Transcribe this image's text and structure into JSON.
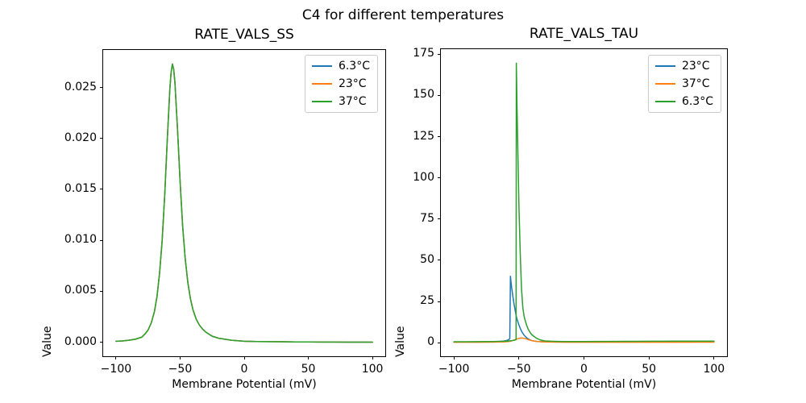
{
  "figure": {
    "suptitle": "C4 for different temperatures"
  },
  "colors": {
    "blue": "#1f77b4",
    "orange": "#ff7f0e",
    "green": "#2ca02c",
    "spine": "#000000",
    "legend_edge": "#cccccc",
    "background": "#ffffff"
  },
  "chart_data": [
    {
      "type": "line",
      "title": "RATE_VALS_SS",
      "xlabel": "Membrane Potential (mV)",
      "ylabel": "Value",
      "xlim": [
        -110,
        110
      ],
      "ylim": [
        -0.00137,
        0.02868
      ],
      "xticks": [
        -100,
        -50,
        0,
        50,
        100
      ],
      "xtick_labels": [
        "−100",
        "−50",
        "0",
        "50",
        "100"
      ],
      "yticks": [
        0.0,
        0.005,
        0.01,
        0.015,
        0.02,
        0.025
      ],
      "ytick_labels": [
        "0.000",
        "0.005",
        "0.010",
        "0.015",
        "0.020",
        "0.025"
      ],
      "grid": false,
      "legend_position": "upper right",
      "legend": [
        {
          "label": "6.3°C",
          "color": "#1f77b4"
        },
        {
          "label": "23°C",
          "color": "#ff7f0e"
        },
        {
          "label": "37°C",
          "color": "#2ca02c"
        }
      ],
      "note": "all three temperature curves overlap exactly; peak 0.0273 at -56 mV",
      "x": [
        -100,
        -95,
        -90,
        -85,
        -80,
        -77.5,
        -75,
        -72.5,
        -70,
        -68,
        -66,
        -64,
        -62,
        -60,
        -58,
        -57,
        -56,
        -55,
        -54,
        -52,
        -50,
        -48,
        -46,
        -44,
        -42,
        -40,
        -37.5,
        -35,
        -32.5,
        -30,
        -25,
        -20,
        -15,
        -10,
        -5,
        0,
        10,
        20,
        30,
        40,
        50,
        60,
        70,
        80,
        90,
        100
      ],
      "y_all": [
        0.0001,
        0.00013,
        0.0002,
        0.0003,
        0.0005,
        0.0008,
        0.0012,
        0.0019,
        0.003,
        0.0045,
        0.0068,
        0.01,
        0.0145,
        0.0198,
        0.0248,
        0.0265,
        0.0273,
        0.0268,
        0.0254,
        0.0208,
        0.0157,
        0.0114,
        0.0082,
        0.0059,
        0.0043,
        0.0032,
        0.0023,
        0.0017,
        0.0013,
        0.001,
        0.0006,
        0.0004,
        0.0003,
        0.0002,
        0.00015,
        0.0001,
        8e-05,
        6e-05,
        5e-05,
        4e-05,
        3e-05,
        2e-05,
        2e-05,
        1e-05,
        1e-05,
        1e-05
      ],
      "series": [
        {
          "name": "6.3°C",
          "color": "#1f77b4"
        },
        {
          "name": "23°C",
          "color": "#ff7f0e"
        },
        {
          "name": "37°C",
          "color": "#2ca02c"
        }
      ]
    },
    {
      "type": "line",
      "title": "RATE_VALS_TAU",
      "xlabel": "Membrane Potential (mV)",
      "ylabel": "Value",
      "xlim": [
        -110,
        110
      ],
      "ylim": [
        -8.2,
        178.1
      ],
      "xticks": [
        -100,
        -50,
        0,
        50,
        100
      ],
      "xtick_labels": [
        "−100",
        "−50",
        "0",
        "50",
        "100"
      ],
      "yticks": [
        0,
        25,
        50,
        75,
        100,
        125,
        150,
        175
      ],
      "ytick_labels": [
        "0",
        "25",
        "50",
        "75",
        "100",
        "125",
        "150",
        "175"
      ],
      "grid": false,
      "legend_position": "upper right",
      "legend": [
        {
          "label": "23°C",
          "color": "#1f77b4"
        },
        {
          "label": "37°C",
          "color": "#ff7f0e"
        },
        {
          "label": "6.3°C",
          "color": "#2ca02c"
        }
      ],
      "note": "sharp spikes: 6.3C peaks ~169.6 near -52 mV, 23C peaks ~40.3 near -56.5 mV, 37C small bump ~2.9 near -48 mV",
      "x": [
        -100,
        -90,
        -80,
        -75,
        -70,
        -65,
        -62,
        -60,
        -59,
        -58,
        -57.5,
        -57,
        -56.5,
        -56,
        -55.5,
        -55,
        -54,
        -53,
        -52.5,
        -52.2,
        -52,
        -51.5,
        -51,
        -50,
        -49,
        -48,
        -47,
        -46,
        -45,
        -44,
        -43,
        -42,
        -41,
        -40,
        -38,
        -36,
        -34,
        -32,
        -30,
        -25,
        -20,
        -15,
        -10,
        -5,
        0,
        10,
        20,
        30,
        40,
        50,
        60,
        70,
        80,
        90,
        100
      ],
      "series": [
        {
          "name": "23°C",
          "color": "#1f77b4",
          "y": [
            0.5,
            0.5,
            0.55,
            0.6,
            0.65,
            0.8,
            1.0,
            1.3,
            1.5,
            1.8,
            2.1,
            2.5,
            40.3,
            36.5,
            33,
            30,
            24.5,
            20,
            18,
            16.8,
            16,
            14.5,
            13.2,
            10.8,
            8.8,
            7.1,
            5.7,
            4.6,
            3.7,
            3.0,
            2.4,
            1.9,
            1.6,
            1.3,
            1.0,
            0.8,
            0.7,
            0.65,
            0.6,
            0.55,
            0.5,
            0.5,
            0.5,
            0.5,
            0.5,
            0.55,
            0.55,
            0.6,
            0.6,
            0.65,
            0.65,
            0.7,
            0.7,
            0.75,
            0.75
          ]
        },
        {
          "name": "37°C",
          "color": "#ff7f0e",
          "y": [
            0.3,
            0.3,
            0.32,
            0.35,
            0.38,
            0.45,
            0.5,
            0.6,
            0.65,
            0.75,
            0.8,
            0.85,
            0.95,
            1.05,
            1.15,
            1.3,
            1.55,
            1.85,
            2.0,
            2.1,
            2.15,
            2.3,
            2.4,
            2.65,
            2.8,
            2.85,
            2.8,
            2.65,
            2.45,
            2.2,
            1.95,
            1.7,
            1.5,
            1.3,
            1.0,
            0.8,
            0.65,
            0.55,
            0.5,
            0.4,
            0.35,
            0.3,
            0.3,
            0.3,
            0.3,
            0.3,
            0.3,
            0.3,
            0.3,
            0.3,
            0.3,
            0.32,
            0.32,
            0.35,
            0.35
          ]
        },
        {
          "name": "6.3°C",
          "color": "#2ca02c",
          "y": [
            0.6,
            0.6,
            0.65,
            0.7,
            0.75,
            0.85,
            0.9,
            1.0,
            1.0,
            1.1,
            1.1,
            1.15,
            1.2,
            1.25,
            1.3,
            1.35,
            1.5,
            1.65,
            1.75,
            1.85,
            169.6,
            145,
            124,
            84,
            55,
            33,
            21,
            16,
            13,
            10.5,
            8.5,
            7.0,
            5.8,
            4.8,
            3.6,
            2.5,
            1.8,
            1.4,
            1.1,
            0.9,
            0.8,
            0.75,
            0.75,
            0.75,
            0.75,
            0.8,
            0.8,
            0.85,
            0.85,
            0.9,
            0.9,
            0.95,
            0.95,
            1.0,
            1.0
          ]
        }
      ]
    }
  ]
}
